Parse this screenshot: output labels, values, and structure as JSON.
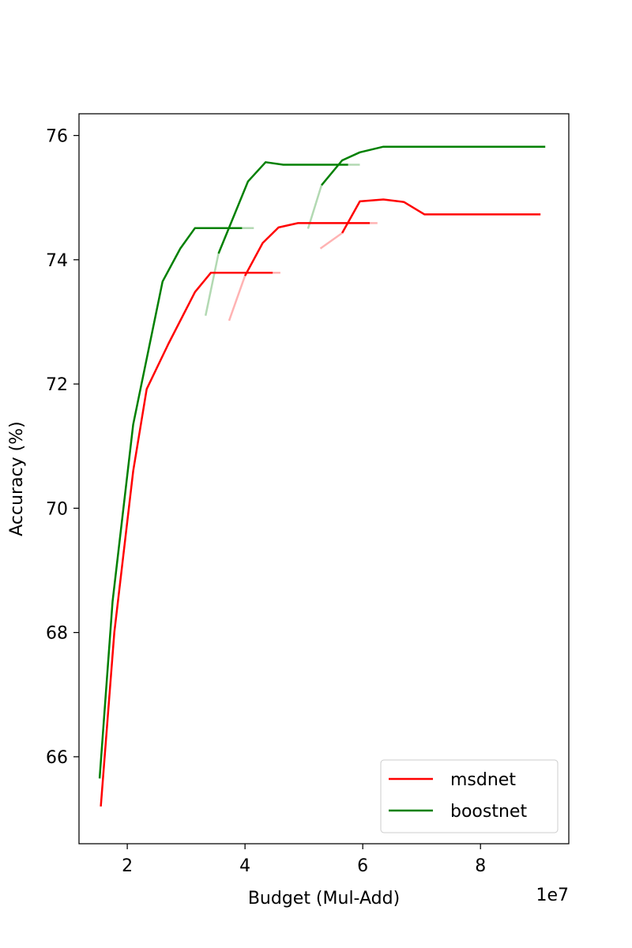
{
  "chart_data": {
    "type": "line",
    "title": "",
    "xlabel": "Budget (Mul-Add)",
    "ylabel": "Accuracy (%)",
    "x_offset_label": "1e7",
    "xlim": [
      1.18,
      9.5
    ],
    "ylim": [
      64.6,
      76.35
    ],
    "x_ticks": [
      2,
      4,
      6,
      8
    ],
    "x_tick_labels": [
      "2",
      "4",
      "6",
      "8"
    ],
    "y_ticks": [
      66,
      68,
      70,
      72,
      74,
      76
    ],
    "y_tick_labels": [
      "66",
      "68",
      "70",
      "72",
      "74",
      "76"
    ],
    "grid": false,
    "legend": "bottom-right",
    "colors": {
      "msdnet": "#ff0000",
      "msdnet_faint": "#ffb3b3",
      "boostnet": "#008000",
      "boostnet_faint": "#b2d9b2",
      "axes": "#000000"
    },
    "series": [
      {
        "name": "msdnet",
        "color": "#ff0000",
        "x": [
          1.55,
          1.78,
          2.1,
          2.33,
          2.7,
          3.15,
          3.42,
          4.47
        ],
        "y": [
          65.2,
          68.0,
          70.6,
          71.92,
          72.65,
          73.48,
          73.79,
          73.79
        ]
      },
      {
        "name": "msdnet",
        "color": "#ff0000",
        "x": [
          4.0,
          4.3,
          4.57,
          4.9,
          6.12
        ],
        "y": [
          73.74,
          74.27,
          74.52,
          74.59,
          74.59
        ]
      },
      {
        "name": "msdnet",
        "color": "#ff0000",
        "x": [
          5.65,
          5.95,
          6.35,
          6.7,
          7.05,
          9.02
        ],
        "y": [
          74.43,
          74.94,
          74.97,
          74.93,
          74.73,
          74.73
        ]
      },
      {
        "name": "boostnet",
        "color": "#008000",
        "x": [
          1.53,
          1.75,
          2.1,
          2.6,
          2.9,
          3.15,
          3.95
        ],
        "y": [
          65.65,
          68.5,
          71.35,
          73.65,
          74.18,
          74.51,
          74.51
        ]
      },
      {
        "name": "boostnet",
        "color": "#008000",
        "x": [
          3.55,
          4.05,
          4.35,
          4.65,
          5.75
        ],
        "y": [
          74.1,
          75.26,
          75.57,
          75.53,
          75.53
        ]
      },
      {
        "name": "boostnet",
        "color": "#008000",
        "x": [
          5.3,
          5.65,
          5.95,
          6.35,
          9.1
        ],
        "y": [
          75.2,
          75.6,
          75.73,
          75.82,
          75.82
        ]
      }
    ],
    "faint_segments": [
      {
        "color": "#ffb3b3",
        "x": [
          3.73,
          4.0
        ],
        "y": [
          73.02,
          73.74
        ]
      },
      {
        "color": "#ffb3b3",
        "x": [
          4.47,
          4.6
        ],
        "y": [
          73.79,
          73.79
        ]
      },
      {
        "color": "#ffb3b3",
        "x": [
          5.28,
          5.65
        ],
        "y": [
          74.18,
          74.43
        ]
      },
      {
        "color": "#ffb3b3",
        "x": [
          6.12,
          6.25
        ],
        "y": [
          74.59,
          74.59
        ]
      },
      {
        "color": "#b2d9b2",
        "x": [
          3.33,
          3.55
        ],
        "y": [
          73.1,
          74.1
        ]
      },
      {
        "color": "#b2d9b2",
        "x": [
          3.95,
          4.15
        ],
        "y": [
          74.51,
          74.51
        ]
      },
      {
        "color": "#b2d9b2",
        "x": [
          5.07,
          5.3
        ],
        "y": [
          74.5,
          75.2
        ]
      },
      {
        "color": "#b2d9b2",
        "x": [
          5.75,
          5.95
        ],
        "y": [
          75.53,
          75.53
        ]
      }
    ],
    "legend_entries": [
      {
        "label": "msdnet",
        "color": "#ff0000"
      },
      {
        "label": "boostnet",
        "color": "#008000"
      }
    ]
  }
}
